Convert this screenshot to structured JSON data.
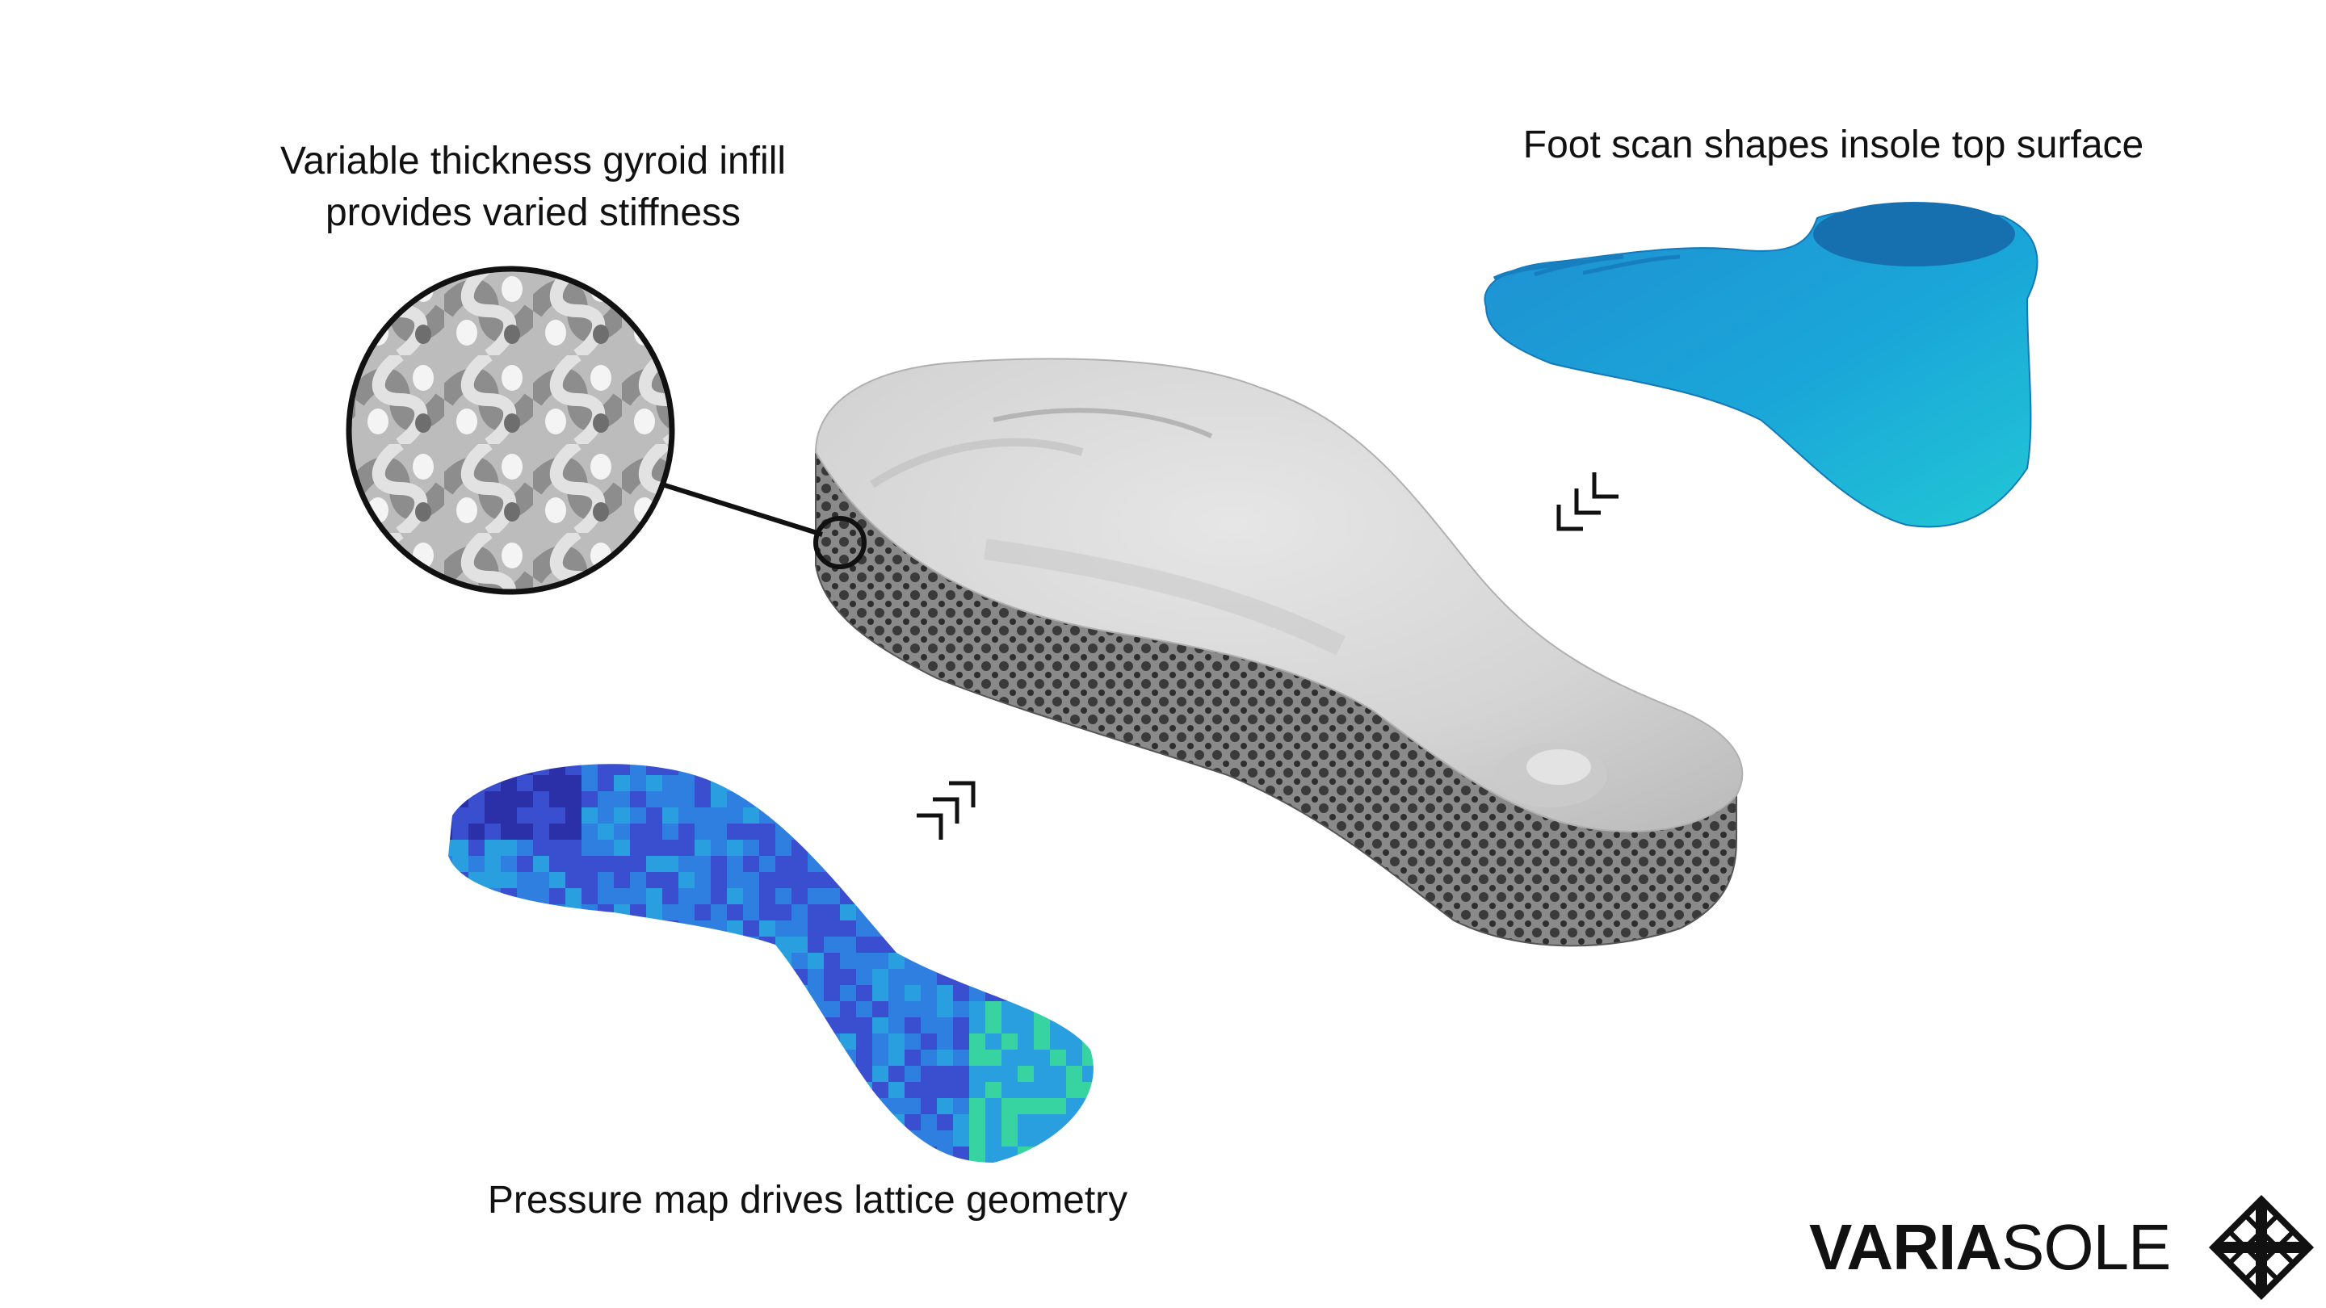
{
  "labels": {
    "gyroid_line1": "Variable thickness gyroid infill",
    "gyroid_line2": "provides varied stiffness",
    "foot_scan": "Foot scan shapes insole top surface",
    "pressure": "Pressure map drives lattice geometry"
  },
  "brand": {
    "bold_part": "VARIA",
    "light_part": "SOLE",
    "logo_icon": "lattice-x-icon"
  },
  "icons": {
    "arrow_from_foot": "chevron-stack-arrow-icon",
    "arrow_from_pressure": "chevron-stack-arrow-icon"
  },
  "colors": {
    "text": "#111111",
    "insole_top": "#d9d9d9",
    "lattice_edge": "#6b6b6b",
    "foot_scan": "#1a9ad6",
    "pressure_low": "#2b2fa8",
    "pressure_mid": "#2f7fe0",
    "pressure_high": "#37d3a0"
  }
}
